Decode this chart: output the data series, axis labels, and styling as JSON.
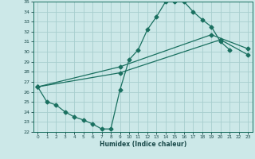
{
  "background_color": "#cce8e8",
  "grid_color": "#a8cece",
  "line_color": "#1a7060",
  "xlabel": "Humidex (Indice chaleur)",
  "xlim": [
    -0.5,
    23.5
  ],
  "ylim": [
    22,
    35
  ],
  "yticks": [
    22,
    23,
    24,
    25,
    26,
    27,
    28,
    29,
    30,
    31,
    32,
    33,
    34,
    35
  ],
  "xticks": [
    0,
    1,
    2,
    3,
    4,
    5,
    6,
    7,
    8,
    9,
    10,
    11,
    12,
    13,
    14,
    15,
    16,
    17,
    18,
    19,
    20,
    21,
    22,
    23
  ],
  "line1_x": [
    0,
    1,
    2,
    3,
    4,
    5,
    6,
    7,
    8,
    9,
    10,
    11,
    12,
    13,
    14,
    15,
    16,
    17,
    18,
    19,
    20,
    21
  ],
  "line1_y": [
    26.5,
    25.0,
    24.7,
    24.0,
    23.5,
    23.2,
    22.8,
    22.3,
    22.3,
    26.2,
    29.2,
    30.2,
    32.2,
    33.5,
    35.0,
    35.0,
    35.0,
    34.0,
    33.2,
    32.5,
    31.0,
    30.2
  ],
  "line2_x": [
    0,
    9,
    20,
    23
  ],
  "line2_y": [
    26.5,
    27.9,
    31.2,
    29.7
  ],
  "line3_x": [
    0,
    9,
    19,
    23
  ],
  "line3_y": [
    26.5,
    28.5,
    31.7,
    30.3
  ],
  "marker": "D",
  "markersize": 2.5,
  "linewidth": 0.9
}
